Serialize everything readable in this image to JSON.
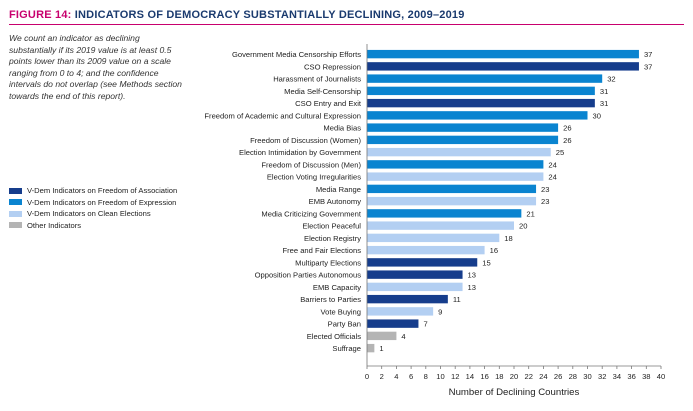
{
  "figure": {
    "number": "FIGURE 14:",
    "title": "INDICATORS OF DEMOCRACY SUBSTANTIALLY DECLINING, 2009–2019",
    "note": "We count an indicator as declining substantially if its 2019 value is at least 0.5 points lower than its 2009 value on a scale ranging from 0 to 4; and the confidence intervals do not overlap (see Methods section towards the end of this report)."
  },
  "legend": [
    {
      "label": "V-Dem Indicators on Freedom of Association",
      "color": "#163d8c"
    },
    {
      "label": "V-Dem Indicators on Freedom of Expression",
      "color": "#0a84d0"
    },
    {
      "label": "V-Dem Indicators on Clean Elections",
      "color": "#b3cff2"
    },
    {
      "label": "Other Indicators",
      "color": "#b4b4b4"
    }
  ],
  "chart_data": {
    "type": "bar",
    "orientation": "horizontal",
    "xlabel": "Number of Declining Countries",
    "xlim": [
      0,
      40
    ],
    "xticks": [
      0,
      2,
      4,
      6,
      8,
      10,
      12,
      14,
      16,
      18,
      20,
      22,
      24,
      26,
      28,
      30,
      32,
      34,
      36,
      38,
      40
    ],
    "grid": false,
    "legend_position": "left",
    "categories": [
      "Government Media Censorship Efforts",
      "CSO Repression",
      "Harassment of Journalists",
      "Media Self-Censorship",
      "CSO Entry and Exit",
      "Freedom of Academic and Cultural Expression",
      "Media Bias",
      "Freedom of Discussion (Women)",
      "Election Intimidation by Government",
      "Freedom of Discussion (Men)",
      "Election Voting Irregularities",
      "Media Range",
      "EMB Autonomy",
      "Media Criticizing Government",
      "Election Peaceful",
      "Election Registry",
      "Free and Fair Elections",
      "Multiparty Elections",
      "Opposition Parties Autonomous",
      "EMB Capacity",
      "Barriers to Parties",
      "Vote Buying",
      "Party Ban",
      "Elected Officials",
      "Suffrage"
    ],
    "values": [
      37,
      37,
      32,
      31,
      31,
      30,
      26,
      26,
      25,
      24,
      24,
      23,
      23,
      21,
      20,
      18,
      16,
      15,
      13,
      13,
      11,
      9,
      7,
      4,
      1
    ],
    "groups": [
      1,
      0,
      1,
      1,
      0,
      1,
      1,
      1,
      2,
      1,
      2,
      1,
      2,
      1,
      2,
      2,
      2,
      0,
      0,
      2,
      0,
      2,
      0,
      3,
      3
    ]
  }
}
